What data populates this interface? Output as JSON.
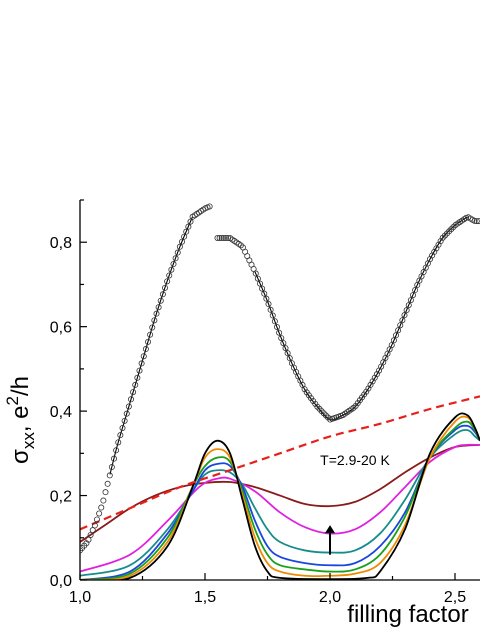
{
  "chart_data": {
    "type": "line",
    "title": "",
    "xlabel": "filling factor",
    "ylabel": "σxx, e2/h",
    "ylabel_parts": {
      "sigma": "σ",
      "sub": "xx",
      "comma": ", e",
      "sup": "2",
      "unit": "/h"
    },
    "xlim": [
      1.0,
      2.6
    ],
    "ylim": [
      0.0,
      0.9
    ],
    "x_ticks": [
      1.0,
      1.5,
      2.0,
      2.5
    ],
    "x_tick_labels": [
      "1,0",
      "1,5",
      "2,0",
      "2,5"
    ],
    "y_ticks": [
      0.0,
      0.2,
      0.4,
      0.6,
      0.8
    ],
    "y_tick_labels": [
      "0,0",
      "0,2",
      "0,4",
      "0,6",
      "0,8"
    ],
    "annotation": "T=2.9-20 K",
    "arrow": {
      "x": 2.0,
      "y_from": 0.06,
      "y_to": 0.13
    },
    "scatter_segments": [
      {
        "x": [
          1.0,
          1.03,
          1.06,
          1.09,
          1.12,
          1.15,
          1.2,
          1.25,
          1.3,
          1.35,
          1.4,
          1.45,
          1.5,
          1.52
        ],
        "y": [
          0.07,
          0.09,
          0.13,
          0.18,
          0.25,
          0.32,
          0.42,
          0.52,
          0.62,
          0.71,
          0.79,
          0.86,
          0.88,
          0.885
        ]
      },
      {
        "x": [
          1.55,
          1.6,
          1.65,
          1.7,
          1.75,
          1.8,
          1.85,
          1.9,
          1.95,
          2.0,
          2.05,
          2.1,
          2.15,
          2.2,
          2.25,
          2.3,
          2.35,
          2.4,
          2.45,
          2.5,
          2.55,
          2.58,
          2.6
        ],
        "y": [
          0.81,
          0.81,
          0.79,
          0.73,
          0.66,
          0.58,
          0.51,
          0.45,
          0.41,
          0.38,
          0.39,
          0.41,
          0.45,
          0.5,
          0.56,
          0.63,
          0.7,
          0.76,
          0.81,
          0.84,
          0.86,
          0.85,
          0.85
        ]
      }
    ],
    "dashed_series": {
      "color": "#e8201c",
      "x": [
        1.0,
        1.2,
        1.4,
        1.6,
        1.8,
        2.0,
        2.2,
        2.4,
        2.6
      ],
      "y": [
        0.12,
        0.17,
        0.22,
        0.26,
        0.3,
        0.34,
        0.37,
        0.405,
        0.435
      ]
    },
    "series": [
      {
        "color": "#000000",
        "x": [
          1.0,
          1.2,
          1.35,
          1.45,
          1.5,
          1.55,
          1.6,
          1.65,
          1.7,
          1.75,
          1.8,
          2.0,
          2.15,
          2.2,
          2.3,
          2.4,
          2.5,
          2.55,
          2.58,
          2.6
        ],
        "y": [
          0.0,
          0.005,
          0.08,
          0.22,
          0.3,
          0.33,
          0.3,
          0.19,
          0.08,
          0.02,
          0.005,
          0.002,
          0.005,
          0.02,
          0.12,
          0.3,
          0.385,
          0.39,
          0.36,
          0.33
        ]
      },
      {
        "color": "#ee8a00",
        "x": [
          1.0,
          1.2,
          1.35,
          1.45,
          1.5,
          1.55,
          1.6,
          1.65,
          1.7,
          1.75,
          1.8,
          1.9,
          2.0,
          2.1,
          2.2,
          2.3,
          2.4,
          2.5,
          2.55,
          2.58,
          2.6
        ],
        "y": [
          0.0,
          0.01,
          0.09,
          0.22,
          0.29,
          0.31,
          0.29,
          0.2,
          0.1,
          0.04,
          0.02,
          0.01,
          0.01,
          0.015,
          0.04,
          0.13,
          0.29,
          0.375,
          0.385,
          0.36,
          0.33
        ]
      },
      {
        "color": "#1aa01a",
        "x": [
          1.0,
          1.2,
          1.35,
          1.45,
          1.5,
          1.55,
          1.6,
          1.65,
          1.7,
          1.75,
          1.8,
          1.9,
          2.0,
          2.1,
          2.2,
          2.3,
          2.4,
          2.5,
          2.55,
          2.58,
          2.6
        ],
        "y": [
          0.0,
          0.015,
          0.1,
          0.22,
          0.27,
          0.29,
          0.28,
          0.21,
          0.12,
          0.06,
          0.035,
          0.025,
          0.02,
          0.025,
          0.06,
          0.15,
          0.29,
          0.36,
          0.375,
          0.355,
          0.33
        ]
      },
      {
        "color": "#1a46e0",
        "x": [
          1.0,
          1.2,
          1.35,
          1.45,
          1.5,
          1.55,
          1.6,
          1.65,
          1.7,
          1.75,
          1.8,
          1.9,
          2.0,
          2.1,
          2.2,
          2.3,
          2.4,
          2.5,
          2.55,
          2.58,
          2.6
        ],
        "y": [
          0.0,
          0.02,
          0.11,
          0.21,
          0.26,
          0.275,
          0.27,
          0.22,
          0.14,
          0.08,
          0.055,
          0.04,
          0.035,
          0.04,
          0.08,
          0.16,
          0.29,
          0.355,
          0.365,
          0.35,
          0.33
        ]
      },
      {
        "color": "#168c8c",
        "x": [
          1.0,
          1.2,
          1.35,
          1.45,
          1.5,
          1.55,
          1.6,
          1.65,
          1.7,
          1.75,
          1.8,
          1.9,
          2.0,
          2.1,
          2.2,
          2.3,
          2.4,
          2.5,
          2.55,
          2.58,
          2.6
        ],
        "y": [
          0.01,
          0.035,
          0.12,
          0.21,
          0.25,
          0.26,
          0.255,
          0.225,
          0.17,
          0.12,
          0.09,
          0.07,
          0.065,
          0.07,
          0.11,
          0.19,
          0.29,
          0.345,
          0.355,
          0.34,
          0.33
        ]
      },
      {
        "color": "#e020e0",
        "x": [
          1.0,
          1.2,
          1.35,
          1.45,
          1.5,
          1.55,
          1.6,
          1.7,
          1.8,
          1.9,
          2.0,
          2.1,
          2.2,
          2.3,
          2.4,
          2.5,
          2.55,
          2.58,
          2.6
        ],
        "y": [
          0.02,
          0.06,
          0.14,
          0.205,
          0.23,
          0.24,
          0.24,
          0.21,
          0.16,
          0.125,
          0.11,
          0.12,
          0.16,
          0.22,
          0.28,
          0.315,
          0.32,
          0.32,
          0.32
        ]
      },
      {
        "color": "#8b1a1a",
        "x": [
          1.0,
          1.1,
          1.2,
          1.3,
          1.4,
          1.5,
          1.6,
          1.7,
          1.8,
          1.9,
          2.0,
          2.1,
          2.2,
          2.3,
          2.4,
          2.5,
          2.6
        ],
        "y": [
          0.09,
          0.13,
          0.17,
          0.2,
          0.22,
          0.23,
          0.232,
          0.22,
          0.2,
          0.18,
          0.175,
          0.185,
          0.215,
          0.255,
          0.29,
          0.315,
          0.32
        ]
      }
    ]
  }
}
